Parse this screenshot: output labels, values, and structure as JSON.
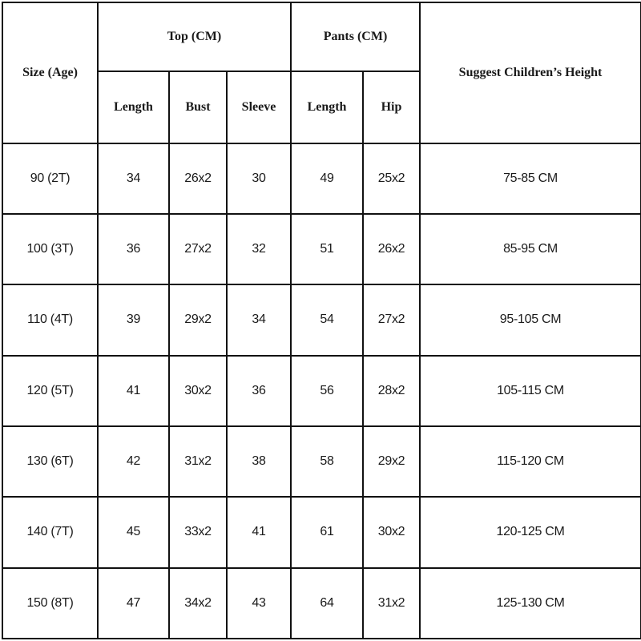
{
  "header": {
    "size": "Size (Age)",
    "top_group": "Top (CM)",
    "pants_group": "Pants (CM)",
    "height": "Suggest Children’s Height",
    "top_cols": [
      "Length",
      "Bust",
      "Sleeve"
    ],
    "pants_cols": [
      "Length",
      "Hip"
    ]
  },
  "rows": [
    [
      "90 (2T)",
      "34",
      "26x2",
      "30",
      "49",
      "25x2",
      "75-85 CM"
    ],
    [
      "100 (3T)",
      "36",
      "27x2",
      "32",
      "51",
      "26x2",
      "85-95 CM"
    ],
    [
      "110 (4T)",
      "39",
      "29x2",
      "34",
      "54",
      "27x2",
      "95-105 CM"
    ],
    [
      "120 (5T)",
      "41",
      "30x2",
      "36",
      "56",
      "28x2",
      "105-115 CM"
    ],
    [
      "130 (6T)",
      "42",
      "31x2",
      "38",
      "58",
      "29x2",
      "115-120 CM"
    ],
    [
      "140 (7T)",
      "45",
      "33x2",
      "41",
      "61",
      "30x2",
      "120-125 CM"
    ],
    [
      "150 (8T)",
      "47",
      "34x2",
      "43",
      "64",
      "31x2",
      "125-130 CM"
    ]
  ]
}
